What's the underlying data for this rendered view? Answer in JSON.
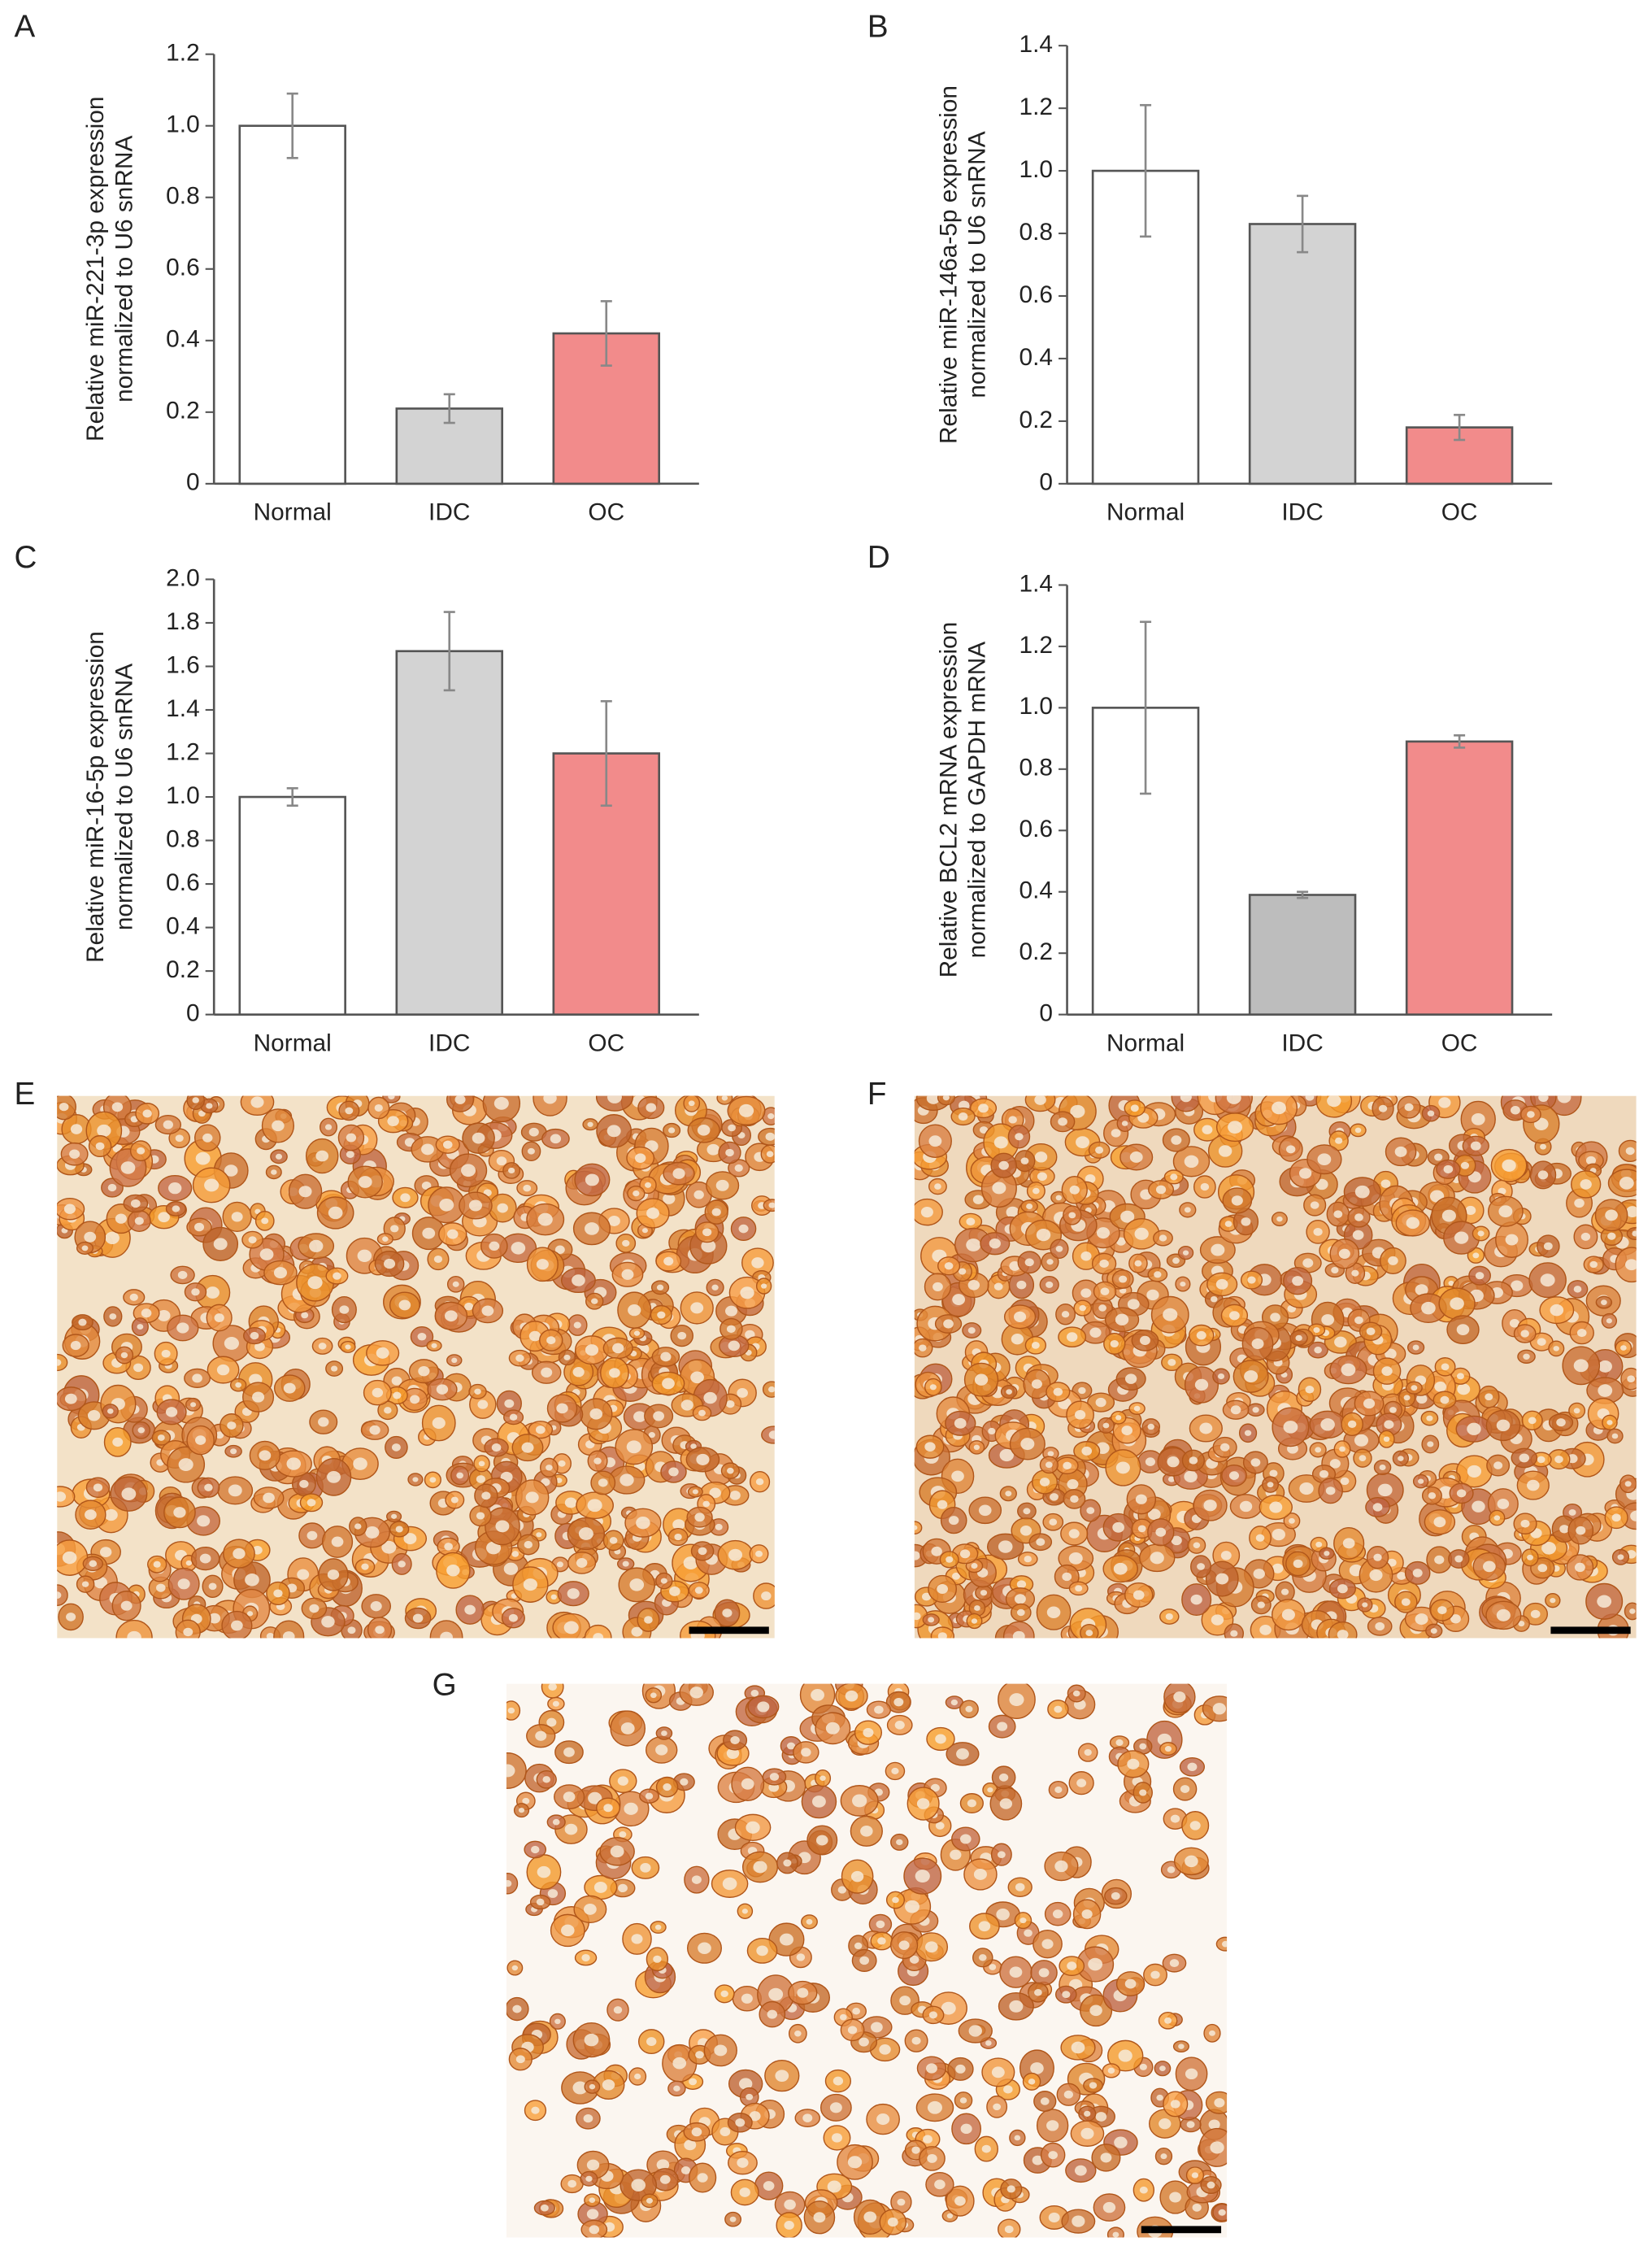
{
  "chart_data": [
    {
      "type": "bar",
      "panel": "A",
      "ylabel": [
        "Relative miR-221-3p expression",
        "normalized to U6 snRNA"
      ],
      "categories": [
        "Normal",
        "IDC",
        "OC"
      ],
      "values": [
        1.0,
        0.21,
        0.42
      ],
      "errors": [
        0.09,
        0.04,
        0.09
      ],
      "colors": [
        "#ffffff",
        "#d3d3d3",
        "#f28b8b"
      ],
      "ylim": [
        0,
        1.2
      ],
      "yticks": [
        0,
        0.2,
        0.4,
        0.6,
        0.8,
        {
          "value": 1,
          "label": "1.0"
        },
        1.2
      ]
    },
    {
      "type": "bar",
      "panel": "B",
      "ylabel": [
        "Relative miR-146a-5p expression",
        "normalized to U6 snRNA"
      ],
      "categories": [
        "Normal",
        "IDC",
        "OC"
      ],
      "values": [
        1.0,
        0.83,
        0.18
      ],
      "errors": [
        0.21,
        0.09,
        0.04
      ],
      "colors": [
        "#ffffff",
        "#d3d3d3",
        "#f28b8b"
      ],
      "ylim": [
        0,
        1.4
      ],
      "yticks": [
        0,
        0.2,
        0.4,
        0.6,
        0.8,
        {
          "value": 1,
          "label": "1.0"
        },
        1.2,
        1.4
      ]
    },
    {
      "type": "bar",
      "panel": "C",
      "ylabel": [
        "Relative miR-16-5p expression",
        "normalized to U6 snRNA"
      ],
      "categories": [
        "Normal",
        "IDC",
        "OC"
      ],
      "values": [
        1.0,
        1.67,
        1.2
      ],
      "errors": [
        0.04,
        0.18,
        0.24
      ],
      "colors": [
        "#ffffff",
        "#d3d3d3",
        "#f28b8b"
      ],
      "ylim": [
        0,
        2
      ],
      "yticks": [
        0,
        0.2,
        0.4,
        0.6,
        0.8,
        {
          "value": 1,
          "label": "1.0"
        },
        1.2,
        1.4,
        1.6,
        1.8,
        {
          "value": 2,
          "label": "2.0"
        }
      ]
    },
    {
      "type": "bar",
      "panel": "D",
      "ylabel": [
        "Relative BCL2 mRNA expression",
        "normalized to GAPDH mRNA"
      ],
      "categories": [
        "Normal",
        "IDC",
        "OC"
      ],
      "values": [
        1.0,
        0.39,
        0.89
      ],
      "errors": [
        0.28,
        0.01,
        0.02
      ],
      "colors": [
        "#ffffff",
        "#bdbdbd",
        "#f28b8b"
      ],
      "ylim": [
        0,
        1.4
      ],
      "yticks": [
        0,
        0.2,
        0.4,
        0.6,
        0.8,
        {
          "value": 1,
          "label": "1.0"
        },
        1.2,
        1.4
      ]
    }
  ],
  "images": [
    {
      "panel": "E"
    },
    {
      "panel": "F"
    },
    {
      "panel": "G"
    }
  ]
}
